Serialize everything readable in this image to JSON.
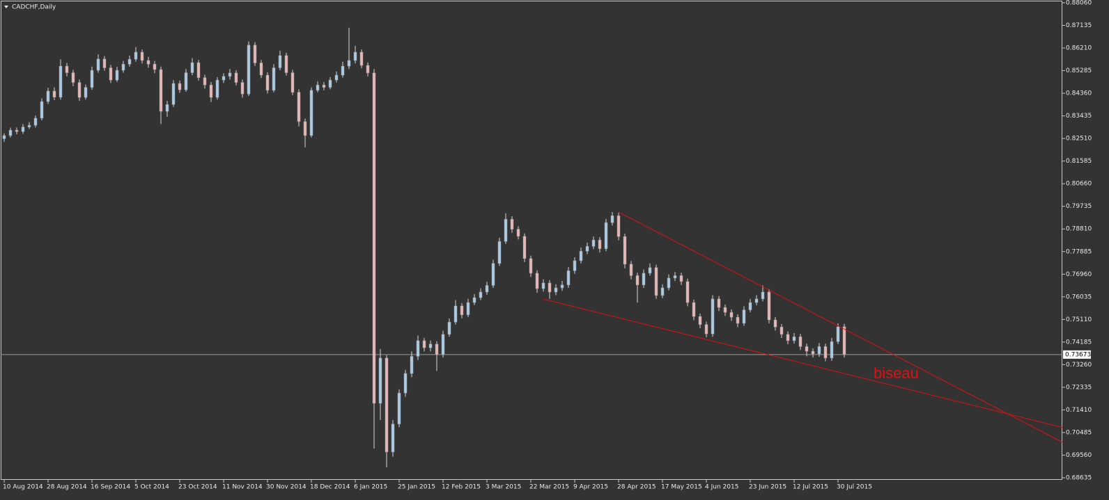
{
  "chart_data": {
    "type": "candlestick",
    "title": "CADCHF,Daily",
    "annotation": "biseau",
    "up_color": "#a9cbe6",
    "down_color": "#e7b7b7",
    "background": "#333333",
    "trendline_color": "#e01010",
    "ylim": [
      0.68635,
      0.8806
    ],
    "yticks": [
      {
        "value": 0.8806,
        "label": "0.88060"
      },
      0.87135,
      {
        "value": 0.8621,
        "label": "0.86210"
      },
      0.85285,
      {
        "value": 0.8436,
        "label": "0.84360"
      },
      0.83435,
      {
        "value": 0.8251,
        "label": "0.82510"
      },
      0.81585,
      {
        "value": 0.8066,
        "label": "0.80660"
      },
      0.79735,
      {
        "value": 0.7881,
        "label": "0.78810"
      },
      0.77885,
      {
        "value": 0.7696,
        "label": "0.76960"
      },
      0.76035,
      {
        "value": 0.7511,
        "label": "0.75110"
      },
      0.74185,
      {
        "value": 0.7326,
        "label": "0.73260"
      },
      0.72335,
      {
        "value": 0.7141,
        "label": "0.71410"
      },
      0.70485,
      {
        "value": 0.6956,
        "label": "0.69560"
      },
      0.68635
    ],
    "last_price": 0.73673,
    "categories": [
      "10 Aug 2014",
      null,
      null,
      null,
      null,
      null,
      null,
      "28 Aug 2014",
      null,
      null,
      null,
      null,
      null,
      null,
      "16 Sep 2014",
      null,
      null,
      null,
      null,
      null,
      null,
      "5 Oct 2014",
      null,
      null,
      null,
      null,
      null,
      null,
      "23 Oct 2014",
      null,
      null,
      null,
      null,
      null,
      null,
      "11 Nov 2014",
      null,
      null,
      null,
      null,
      null,
      null,
      "30 Nov 2014",
      null,
      null,
      null,
      null,
      null,
      null,
      "18 Dec 2014",
      null,
      null,
      null,
      null,
      null,
      null,
      "6 Jan 2015",
      null,
      null,
      null,
      null,
      null,
      null,
      "25 Jan 2015",
      null,
      null,
      null,
      null,
      null,
      null,
      "12 Feb 2015",
      null,
      null,
      null,
      null,
      null,
      null,
      "3 Mar 2015",
      null,
      null,
      null,
      null,
      null,
      null,
      "22 Mar 2015",
      null,
      null,
      null,
      null,
      null,
      null,
      "9 Apr 2015",
      null,
      null,
      null,
      null,
      null,
      null,
      "28 Apr 2015",
      null,
      null,
      null,
      null,
      null,
      null,
      "17 May 2015",
      null,
      null,
      null,
      null,
      null,
      null,
      "4 Jun 2015",
      null,
      null,
      null,
      null,
      null,
      null,
      "23 Jun 2015",
      null,
      null,
      null,
      null,
      null,
      null,
      "12 Jul 2015",
      null,
      null,
      null,
      null,
      null,
      null,
      "30 Jul 2015",
      null
    ],
    "ohlc": [
      [
        0.825,
        0.8272,
        0.8238,
        0.8263
      ],
      [
        0.8263,
        0.8295,
        0.8255,
        0.8285
      ],
      [
        0.8285,
        0.8296,
        0.8268,
        0.8279
      ],
      [
        0.8279,
        0.831,
        0.827,
        0.8298
      ],
      [
        0.8298,
        0.8318,
        0.829,
        0.8305
      ],
      [
        0.8305,
        0.8345,
        0.8296,
        0.8334
      ],
      [
        0.8334,
        0.8415,
        0.8325,
        0.8402
      ],
      [
        0.8402,
        0.8458,
        0.8392,
        0.8445
      ],
      [
        0.8445,
        0.846,
        0.8408,
        0.842
      ],
      [
        0.842,
        0.8575,
        0.841,
        0.8547
      ],
      [
        0.8547,
        0.856,
        0.8505,
        0.852
      ],
      [
        0.852,
        0.8532,
        0.8465,
        0.848
      ],
      [
        0.848,
        0.8492,
        0.8405,
        0.8419
      ],
      [
        0.8419,
        0.8472,
        0.841,
        0.846
      ],
      [
        0.846,
        0.8545,
        0.845,
        0.853
      ],
      [
        0.853,
        0.8595,
        0.852,
        0.8576
      ],
      [
        0.8576,
        0.8588,
        0.8528,
        0.854
      ],
      [
        0.854,
        0.8552,
        0.8478,
        0.849
      ],
      [
        0.849,
        0.8545,
        0.8482,
        0.853
      ],
      [
        0.853,
        0.8568,
        0.852,
        0.8555
      ],
      [
        0.8555,
        0.859,
        0.8545,
        0.8575
      ],
      [
        0.8575,
        0.8625,
        0.8565,
        0.8604
      ],
      [
        0.8604,
        0.8615,
        0.8558,
        0.857
      ],
      [
        0.857,
        0.8585,
        0.854,
        0.8555
      ],
      [
        0.8555,
        0.8568,
        0.8518,
        0.8533
      ],
      [
        0.8533,
        0.8545,
        0.831,
        0.8362
      ],
      [
        0.8362,
        0.8405,
        0.834,
        0.839
      ],
      [
        0.839,
        0.849,
        0.838,
        0.8476
      ],
      [
        0.8476,
        0.8488,
        0.8438,
        0.845
      ],
      [
        0.845,
        0.8535,
        0.8442,
        0.852
      ],
      [
        0.852,
        0.858,
        0.851,
        0.8561
      ],
      [
        0.8561,
        0.8572,
        0.8488,
        0.85
      ],
      [
        0.85,
        0.8512,
        0.8455,
        0.847
      ],
      [
        0.847,
        0.8482,
        0.84,
        0.8419
      ],
      [
        0.8419,
        0.8502,
        0.841,
        0.849
      ],
      [
        0.849,
        0.8518,
        0.8478,
        0.8505
      ],
      [
        0.8505,
        0.8535,
        0.8492,
        0.8519
      ],
      [
        0.8519,
        0.853,
        0.8468,
        0.848
      ],
      [
        0.848,
        0.8492,
        0.8418,
        0.8433
      ],
      [
        0.8433,
        0.8648,
        0.8425,
        0.8633
      ],
      [
        0.8633,
        0.8645,
        0.8548,
        0.856
      ],
      [
        0.856,
        0.8572,
        0.8498,
        0.851
      ],
      [
        0.851,
        0.8522,
        0.8435,
        0.8448
      ],
      [
        0.8448,
        0.8555,
        0.844,
        0.854
      ],
      [
        0.854,
        0.861,
        0.853,
        0.859
      ],
      [
        0.859,
        0.8602,
        0.8508,
        0.852
      ],
      [
        0.852,
        0.8532,
        0.8428,
        0.844
      ],
      [
        0.844,
        0.8452,
        0.83,
        0.832
      ],
      [
        0.832,
        0.8332,
        0.8215,
        0.8263
      ],
      [
        0.8263,
        0.846,
        0.8255,
        0.8448
      ],
      [
        0.8448,
        0.8485,
        0.844,
        0.847
      ],
      [
        0.847,
        0.8482,
        0.8448,
        0.846
      ],
      [
        0.846,
        0.8502,
        0.8452,
        0.849
      ],
      [
        0.849,
        0.8525,
        0.848,
        0.851
      ],
      [
        0.851,
        0.8565,
        0.85,
        0.8547
      ],
      [
        0.8547,
        0.8704,
        0.8535,
        0.857
      ],
      [
        0.857,
        0.863,
        0.8558,
        0.8604
      ],
      [
        0.8604,
        0.8615,
        0.8538,
        0.855
      ],
      [
        0.855,
        0.8562,
        0.8505,
        0.8519
      ],
      [
        0.8519,
        0.8535,
        0.6983,
        0.7168
      ],
      [
        0.7168,
        0.739,
        0.71,
        0.7353
      ],
      [
        0.7353,
        0.7365,
        0.6906,
        0.6969
      ],
      [
        0.6969,
        0.71,
        0.695,
        0.7083
      ],
      [
        0.7083,
        0.7225,
        0.707,
        0.721
      ],
      [
        0.721,
        0.7305,
        0.7195,
        0.729
      ],
      [
        0.729,
        0.738,
        0.7275,
        0.736
      ],
      [
        0.736,
        0.7445,
        0.7345,
        0.7424
      ],
      [
        0.7424,
        0.7436,
        0.738,
        0.7395
      ],
      [
        0.7395,
        0.7425,
        0.738,
        0.741
      ],
      [
        0.741,
        0.7422,
        0.73,
        0.7367
      ],
      [
        0.7367,
        0.7465,
        0.7355,
        0.745
      ],
      [
        0.745,
        0.7515,
        0.744,
        0.75
      ],
      [
        0.75,
        0.759,
        0.749,
        0.7566
      ],
      [
        0.7566,
        0.7578,
        0.7515,
        0.753
      ],
      [
        0.753,
        0.7595,
        0.752,
        0.758
      ],
      [
        0.758,
        0.7615,
        0.757,
        0.76
      ],
      [
        0.76,
        0.7638,
        0.759,
        0.7623
      ],
      [
        0.7623,
        0.7665,
        0.7612,
        0.765
      ],
      [
        0.765,
        0.7755,
        0.764,
        0.774
      ],
      [
        0.774,
        0.7845,
        0.773,
        0.783
      ],
      [
        0.783,
        0.7945,
        0.782,
        0.7921
      ],
      [
        0.7921,
        0.7933,
        0.7865,
        0.788
      ],
      [
        0.788,
        0.7892,
        0.7838,
        0.7851
      ],
      [
        0.7851,
        0.7863,
        0.7745,
        0.776
      ],
      [
        0.776,
        0.7772,
        0.7685,
        0.77
      ],
      [
        0.77,
        0.7712,
        0.762,
        0.7637
      ],
      [
        0.7637,
        0.7675,
        0.7625,
        0.766
      ],
      [
        0.766,
        0.7672,
        0.7595,
        0.7623
      ],
      [
        0.7623,
        0.7655,
        0.761,
        0.764
      ],
      [
        0.764,
        0.7668,
        0.7628,
        0.7652
      ],
      [
        0.7652,
        0.7725,
        0.764,
        0.771
      ],
      [
        0.771,
        0.7765,
        0.7698,
        0.7751
      ],
      [
        0.7751,
        0.7805,
        0.774,
        0.779
      ],
      [
        0.779,
        0.7825,
        0.7778,
        0.781
      ],
      [
        0.781,
        0.785,
        0.7798,
        0.7836
      ],
      [
        0.7836,
        0.7848,
        0.7785,
        0.78
      ],
      [
        0.78,
        0.7922,
        0.779,
        0.7907
      ],
      [
        0.7907,
        0.795,
        0.7895,
        0.7935
      ],
      [
        0.7935,
        0.7947,
        0.7835,
        0.785
      ],
      [
        0.785,
        0.7862,
        0.772,
        0.7737
      ],
      [
        0.7737,
        0.775,
        0.7675,
        0.769
      ],
      [
        0.769,
        0.7702,
        0.758,
        0.7652
      ],
      [
        0.7652,
        0.7715,
        0.764,
        0.77
      ],
      [
        0.77,
        0.774,
        0.769,
        0.7723
      ],
      [
        0.7723,
        0.7735,
        0.7595,
        0.7609
      ],
      [
        0.7609,
        0.7655,
        0.7598,
        0.764
      ],
      [
        0.764,
        0.7695,
        0.763,
        0.768
      ],
      [
        0.768,
        0.7705,
        0.7668,
        0.769
      ],
      [
        0.769,
        0.7702,
        0.7652,
        0.7666
      ],
      [
        0.7666,
        0.7678,
        0.7565,
        0.758
      ],
      [
        0.758,
        0.7592,
        0.7508,
        0.7523
      ],
      [
        0.7523,
        0.7535,
        0.7475,
        0.749
      ],
      [
        0.749,
        0.7502,
        0.7438,
        0.7452
      ],
      [
        0.7452,
        0.761,
        0.744,
        0.7595
      ],
      [
        0.7595,
        0.7607,
        0.7545,
        0.756
      ],
      [
        0.756,
        0.7572,
        0.7525,
        0.754
      ],
      [
        0.754,
        0.7552,
        0.7505,
        0.752
      ],
      [
        0.752,
        0.7532,
        0.748,
        0.7495
      ],
      [
        0.7495,
        0.7565,
        0.7485,
        0.755
      ],
      [
        0.755,
        0.7595,
        0.754,
        0.758
      ],
      [
        0.758,
        0.761,
        0.7568,
        0.7595
      ],
      [
        0.7595,
        0.765,
        0.7585,
        0.7623
      ],
      [
        0.7623,
        0.7635,
        0.7495,
        0.7509
      ],
      [
        0.7509,
        0.7521,
        0.7465,
        0.748
      ],
      [
        0.748,
        0.7492,
        0.7435,
        0.745
      ],
      [
        0.745,
        0.7462,
        0.741,
        0.7424
      ],
      [
        0.7424,
        0.7455,
        0.7412,
        0.744
      ],
      [
        0.744,
        0.7452,
        0.7386,
        0.74
      ],
      [
        0.74,
        0.7412,
        0.736,
        0.7381
      ],
      [
        0.7381,
        0.7393,
        0.7355,
        0.737
      ],
      [
        0.737,
        0.7415,
        0.7358,
        0.74
      ],
      [
        0.74,
        0.7412,
        0.734,
        0.7353
      ],
      [
        0.7353,
        0.7435,
        0.7342,
        0.742
      ],
      [
        0.742,
        0.7495,
        0.741,
        0.7481
      ],
      [
        0.7481,
        0.7493,
        0.7355,
        0.7367
      ]
    ],
    "trendlines": [
      {
        "x": [
          98,
          169
        ],
        "y": [
          0.795,
          0.7006
        ]
      },
      {
        "x": [
          86,
          169
        ],
        "y": [
          0.7594,
          0.7068
        ]
      }
    ]
  }
}
